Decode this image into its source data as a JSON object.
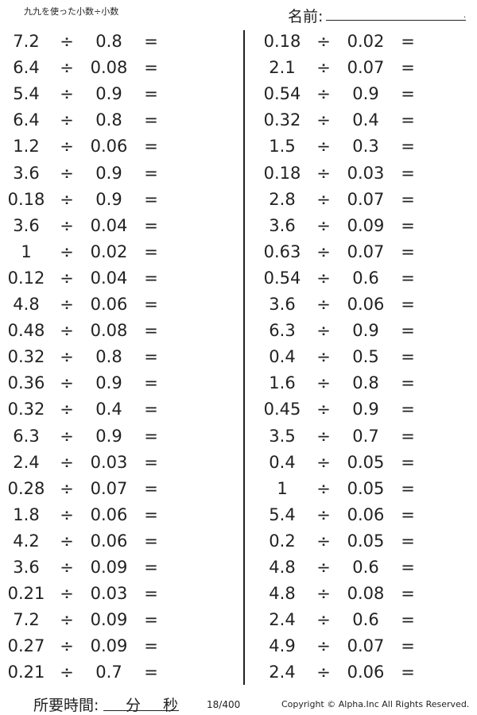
{
  "header": {
    "title": "九九を使った小数÷小数",
    "name_label": "名前:",
    "name_dot": "."
  },
  "operator": "÷",
  "equals": "=",
  "left": [
    [
      "7.2",
      "0.8"
    ],
    [
      "6.4",
      "0.08"
    ],
    [
      "5.4",
      "0.9"
    ],
    [
      "6.4",
      "0.8"
    ],
    [
      "1.2",
      "0.06"
    ],
    [
      "3.6",
      "0.9"
    ],
    [
      "0.18",
      "0.9"
    ],
    [
      "3.6",
      "0.04"
    ],
    [
      "1",
      "0.02"
    ],
    [
      "0.12",
      "0.04"
    ],
    [
      "4.8",
      "0.06"
    ],
    [
      "0.48",
      "0.08"
    ],
    [
      "0.32",
      "0.8"
    ],
    [
      "0.36",
      "0.9"
    ],
    [
      "0.32",
      "0.4"
    ],
    [
      "6.3",
      "0.9"
    ],
    [
      "2.4",
      "0.03"
    ],
    [
      "0.28",
      "0.07"
    ],
    [
      "1.8",
      "0.06"
    ],
    [
      "4.2",
      "0.06"
    ],
    [
      "3.6",
      "0.09"
    ],
    [
      "0.21",
      "0.03"
    ],
    [
      "7.2",
      "0.09"
    ],
    [
      "0.27",
      "0.09"
    ],
    [
      "0.21",
      "0.7"
    ]
  ],
  "right": [
    [
      "0.18",
      "0.02"
    ],
    [
      "2.1",
      "0.07"
    ],
    [
      "0.54",
      "0.9"
    ],
    [
      "0.32",
      "0.4"
    ],
    [
      "1.5",
      "0.3"
    ],
    [
      "0.18",
      "0.03"
    ],
    [
      "2.8",
      "0.07"
    ],
    [
      "3.6",
      "0.09"
    ],
    [
      "0.63",
      "0.07"
    ],
    [
      "0.54",
      "0.6"
    ],
    [
      "3.6",
      "0.06"
    ],
    [
      "6.3",
      "0.9"
    ],
    [
      "0.4",
      "0.5"
    ],
    [
      "1.6",
      "0.8"
    ],
    [
      "0.45",
      "0.9"
    ],
    [
      "3.5",
      "0.7"
    ],
    [
      "0.4",
      "0.05"
    ],
    [
      "1",
      "0.05"
    ],
    [
      "5.4",
      "0.06"
    ],
    [
      "0.2",
      "0.05"
    ],
    [
      "4.8",
      "0.6"
    ],
    [
      "4.8",
      "0.08"
    ],
    [
      "2.4",
      "0.6"
    ],
    [
      "4.9",
      "0.07"
    ],
    [
      "2.4",
      "0.06"
    ]
  ],
  "footer": {
    "time_label": "所要時間:",
    "minutes": "分",
    "seconds": "秒",
    "page": "18/400",
    "copyright": "Copyright © Alpha.Inc All Rights Reserved."
  }
}
